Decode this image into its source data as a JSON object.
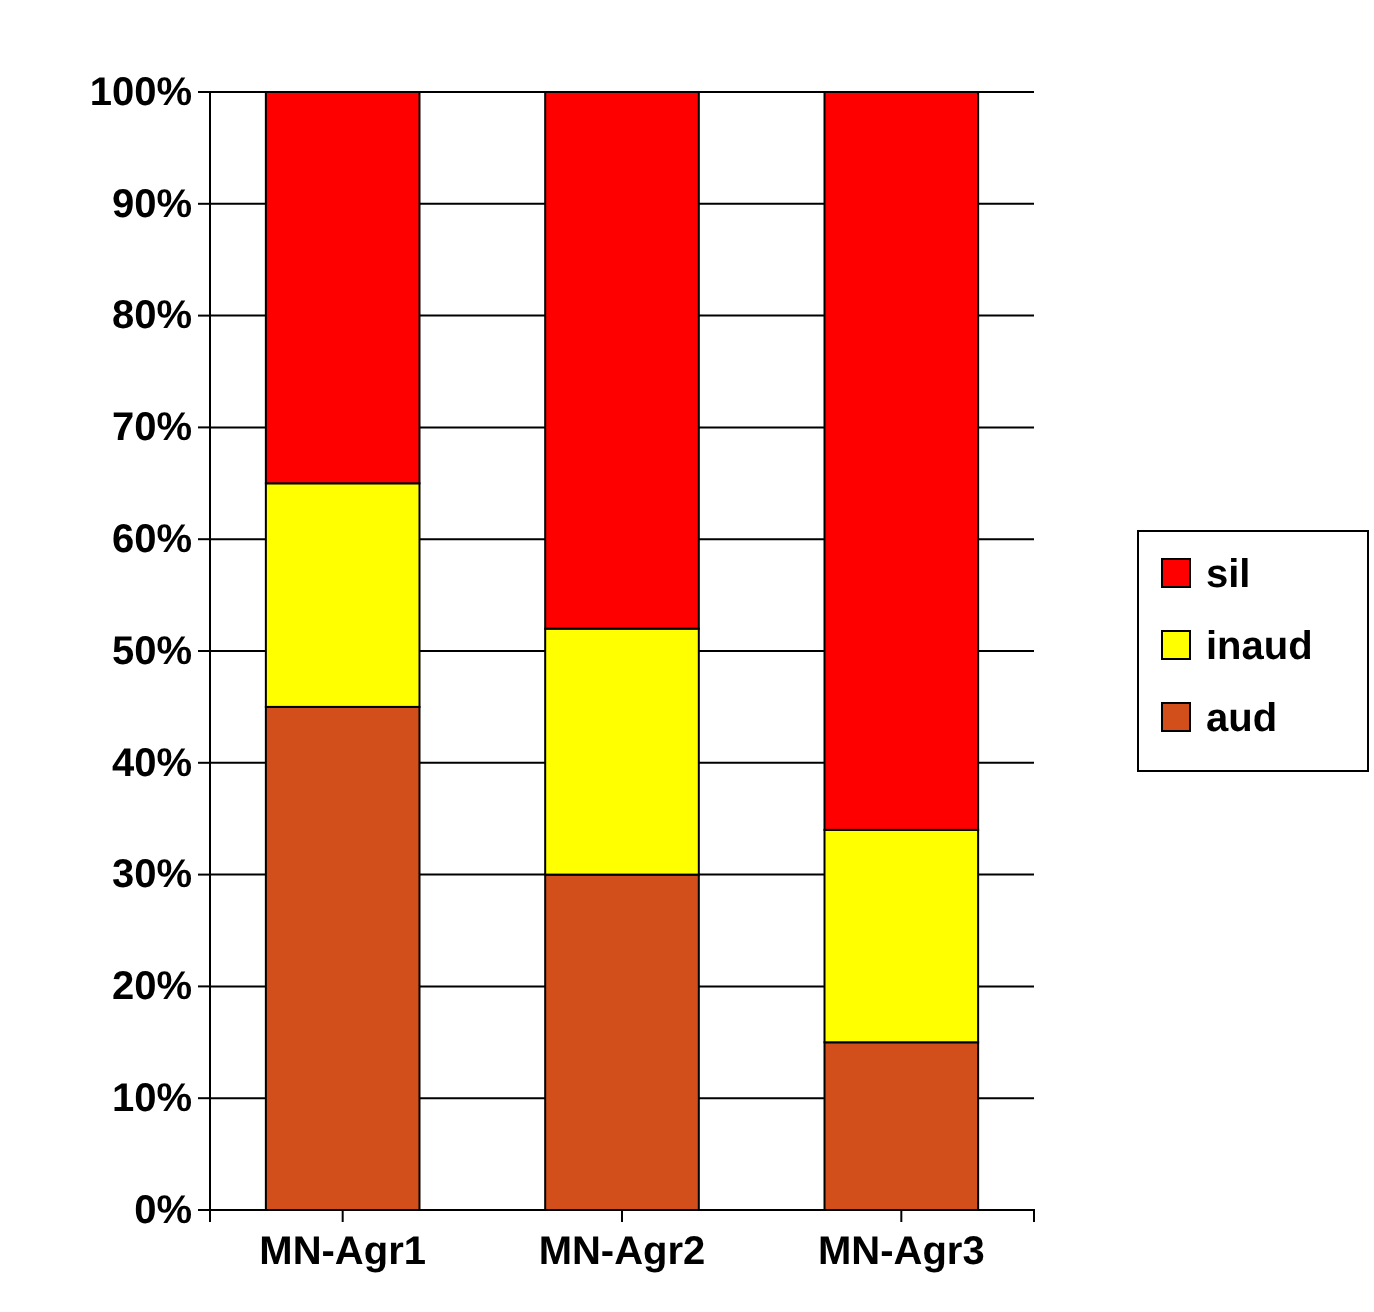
{
  "chart_data": {
    "type": "bar",
    "stacked": true,
    "categories": [
      "MN-Agr1",
      "MN-Agr2",
      "MN-Agr3"
    ],
    "series": [
      {
        "name": "aud",
        "color": "#d24e1a",
        "values": [
          45,
          30,
          15
        ]
      },
      {
        "name": "inaud",
        "color": "#ffff00",
        "values": [
          20,
          22,
          19
        ]
      },
      {
        "name": "sil",
        "color": "#ff0000",
        "values": [
          35,
          48,
          66
        ]
      }
    ],
    "ylim": [
      0,
      100
    ],
    "yticks": [
      {
        "value": 0,
        "label": "0%"
      },
      {
        "value": 10,
        "label": "10%"
      },
      {
        "value": 20,
        "label": "20%"
      },
      {
        "value": 30,
        "label": "30%"
      },
      {
        "value": 40,
        "label": "40%"
      },
      {
        "value": 50,
        "label": "50%"
      },
      {
        "value": 60,
        "label": "60%"
      },
      {
        "value": 70,
        "label": "70%"
      },
      {
        "value": 80,
        "label": "80%"
      },
      {
        "value": 90,
        "label": "90%"
      },
      {
        "value": 100,
        "label": "100%"
      }
    ],
    "grid": "y",
    "legend": "right"
  }
}
